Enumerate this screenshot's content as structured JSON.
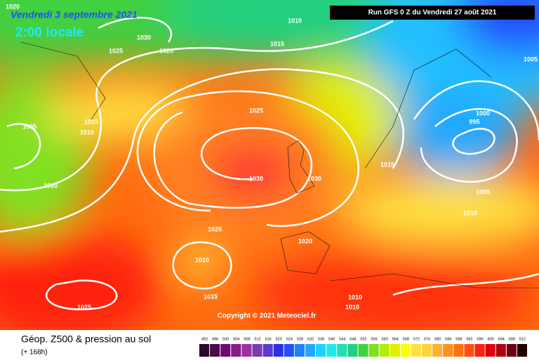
{
  "header": {
    "date": "Vendredi 3 septembre 2021",
    "time": "2:00 locale",
    "run": "Run GFS 0 Z du Vendredi 27 août 2021"
  },
  "isobar_labels": [
    "1020",
    "1010",
    "1030",
    "1025",
    "1020",
    "1015",
    "1005",
    "1025",
    "1000",
    "995",
    "1005",
    "1015",
    "1010",
    "1015",
    "1030",
    "1030",
    "1010",
    "1005",
    "1010",
    "1020",
    "1020",
    "1010",
    "1015",
    "1025",
    "1010",
    "1010"
  ],
  "copyright": "Copyright © 2021 Meteociel.fr",
  "footer": {
    "title": "Géop. Z500 & pression au sol",
    "lead": "(+ 168h)"
  },
  "colorbar": {
    "labels": [
      492,
      496,
      500,
      504,
      508,
      512,
      516,
      520,
      524,
      528,
      532,
      536,
      540,
      544,
      548,
      552,
      556,
      560,
      564,
      568,
      572,
      576,
      580,
      584,
      588,
      592,
      596,
      600,
      604,
      608,
      612
    ],
    "colors": [
      "#2b0a2b",
      "#4a0a4a",
      "#700a70",
      "#8a1a8a",
      "#a030a0",
      "#7a3ab0",
      "#5a3ad0",
      "#3030e0",
      "#2050ff",
      "#2080ff",
      "#20a8ff",
      "#20d0ff",
      "#20e8e8",
      "#20e0b0",
      "#20d080",
      "#40d040",
      "#80e020",
      "#b0f000",
      "#e0f000",
      "#ffff00",
      "#ffe040",
      "#ffd040",
      "#ffb030",
      "#ff9020",
      "#ff7010",
      "#ff5010",
      "#ff2010",
      "#e00010",
      "#b00010",
      "#700010",
      "#200000"
    ]
  }
}
